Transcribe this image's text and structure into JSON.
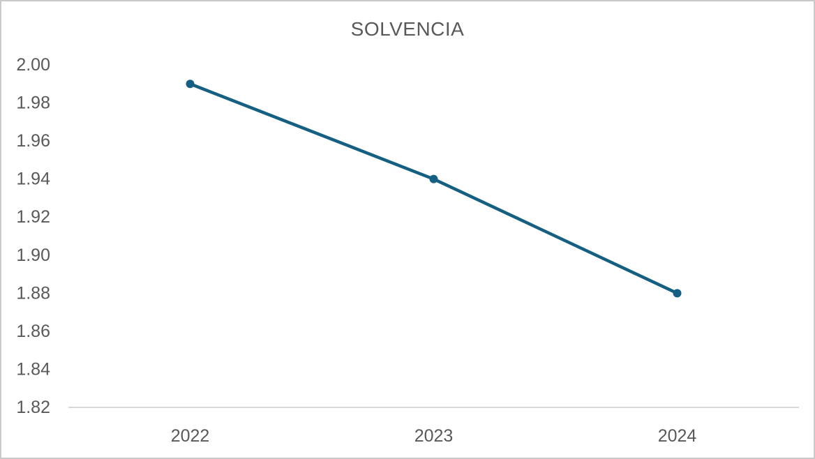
{
  "chart_data": {
    "type": "line",
    "title": "SOLVENCIA",
    "categories": [
      "2022",
      "2023",
      "2024"
    ],
    "series": [
      {
        "name": "SOLVENCIA",
        "values": [
          1.99,
          1.94,
          1.88
        ]
      }
    ],
    "xlabel": "",
    "ylabel": "",
    "ylim": [
      1.82,
      2.0
    ],
    "ytick_step": 0.02,
    "ytick_labels": [
      "2.00",
      "1.98",
      "1.96",
      "1.94",
      "1.92",
      "1.90",
      "1.88",
      "1.86",
      "1.84",
      "1.82"
    ],
    "grid": false,
    "legend_position": "none",
    "colors": {
      "line": "#156082",
      "marker": "#156082",
      "axis_line": "#d9d9d9",
      "tick_text": "#595959",
      "title_text": "#595959",
      "frame_border": "#c9c9c9",
      "background": "#ffffff"
    }
  }
}
